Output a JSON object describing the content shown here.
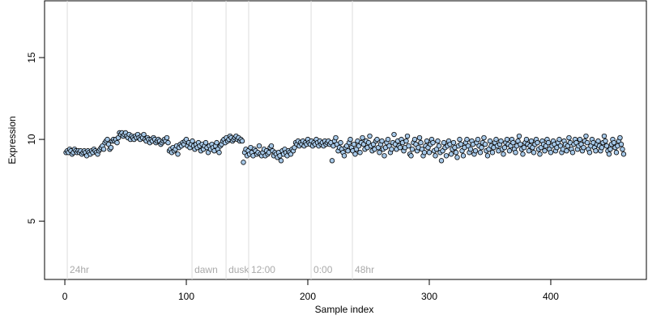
{
  "chart_data": {
    "type": "scatter",
    "xlabel": "Sample index",
    "ylabel": "Expression",
    "xlim": [
      -16.7,
      478.7
    ],
    "ylim": [
      1.44,
      18.47
    ],
    "xticks": [
      0,
      100,
      200,
      300,
      400
    ],
    "yticks": [
      5,
      10,
      15
    ],
    "annotations": [
      {
        "x": 2,
        "text": "24hr"
      },
      {
        "x": 104.7,
        "text": "dawn"
      },
      {
        "x": 132.7,
        "text": "dusk"
      },
      {
        "x": 151.3,
        "text": "12:00"
      },
      {
        "x": 202.7,
        "text": "0:00"
      },
      {
        "x": 236.7,
        "text": "48hr"
      }
    ],
    "series": [
      {
        "color": "#a6c8e8",
        "x": [
          1,
          2,
          3,
          4,
          5,
          6,
          7,
          8,
          9,
          10,
          11,
          12,
          13,
          14,
          15,
          16,
          17,
          18,
          19,
          20,
          21,
          22,
          23,
          24,
          25,
          26,
          27,
          28,
          29,
          30,
          31,
          32,
          33,
          34,
          35,
          36,
          37,
          38,
          39,
          40,
          41,
          42,
          43,
          44,
          45,
          46,
          47,
          48,
          49,
          50,
          51,
          52,
          53,
          54,
          55,
          56,
          57,
          58,
          59,
          60,
          61,
          62,
          63,
          64,
          65,
          66,
          67,
          68,
          69,
          70,
          71,
          72,
          73,
          74,
          75,
          76,
          77,
          78,
          79,
          80,
          81,
          82,
          83,
          84,
          85,
          86,
          87,
          88,
          89,
          90,
          91,
          92,
          93,
          94,
          95,
          96,
          97,
          98,
          99,
          100,
          101,
          102,
          103,
          104,
          105,
          106,
          107,
          108,
          109,
          110,
          111,
          112,
          113,
          114,
          115,
          116,
          117,
          118,
          119,
          120,
          121,
          122,
          123,
          124,
          125,
          126,
          127,
          128,
          129,
          130,
          131,
          132,
          133,
          134,
          135,
          136,
          137,
          138,
          139,
          140,
          141,
          142,
          143,
          144,
          145,
          146,
          147,
          148,
          149,
          150,
          151,
          152,
          153,
          154,
          155,
          156,
          157,
          158,
          159,
          160,
          161,
          162,
          163,
          164,
          165,
          166,
          167,
          168,
          169,
          170,
          171,
          172,
          173,
          174,
          175,
          176,
          177,
          178,
          179,
          180,
          181,
          182,
          183,
          184,
          185,
          186,
          187,
          188,
          189,
          190,
          191,
          192,
          193,
          194,
          195,
          196,
          197,
          198,
          199,
          200,
          201,
          202,
          203,
          204,
          205,
          206,
          207,
          208,
          209,
          210,
          211,
          212,
          213,
          214,
          215,
          216,
          217,
          218,
          219,
          220,
          221,
          222,
          223,
          224,
          225,
          226,
          227,
          228,
          229,
          230,
          231,
          232,
          233,
          234,
          235,
          236,
          237,
          238,
          239,
          240,
          241,
          242,
          243,
          244,
          245,
          246,
          247,
          248,
          249,
          250,
          251,
          252,
          253,
          254,
          255,
          256,
          257,
          258,
          259,
          260,
          261,
          262,
          263,
          264,
          265,
          266,
          267,
          268,
          269,
          270,
          271,
          272,
          273,
          274,
          275,
          276,
          277,
          278,
          279,
          280,
          281,
          282,
          283,
          284,
          285,
          286,
          287,
          288,
          289,
          290,
          291,
          292,
          293,
          294,
          295,
          296,
          297,
          298,
          299,
          300,
          301,
          302,
          303,
          304,
          305,
          306,
          307,
          308,
          309,
          310,
          311,
          312,
          313,
          314,
          315,
          316,
          317,
          318,
          319,
          320,
          321,
          322,
          323,
          324,
          325,
          326,
          327,
          328,
          329,
          330,
          331,
          332,
          333,
          334,
          335,
          336,
          337,
          338,
          339,
          340,
          341,
          342,
          343,
          344,
          345,
          346,
          347,
          348,
          349,
          350,
          351,
          352,
          353,
          354,
          355,
          356,
          357,
          358,
          359,
          360,
          361,
          362,
          363,
          364,
          365,
          366,
          367,
          368,
          369,
          370,
          371,
          372,
          373,
          374,
          375,
          376,
          377,
          378,
          379,
          380,
          381,
          382,
          383,
          384,
          385,
          386,
          387,
          388,
          389,
          390,
          391,
          392,
          393,
          394,
          395,
          396,
          397,
          398,
          399,
          400,
          401,
          402,
          403,
          404,
          405,
          406,
          407,
          408,
          409,
          410,
          411,
          412,
          413,
          414,
          415,
          416,
          417,
          418,
          419,
          420,
          421,
          422,
          423,
          424,
          425,
          426,
          427,
          428,
          429,
          430,
          431,
          432,
          433,
          434,
          435,
          436,
          437,
          438,
          439,
          440,
          441,
          442,
          443,
          444,
          445,
          446,
          447,
          448,
          449,
          450,
          451,
          452,
          453,
          454,
          455,
          456,
          457,
          458,
          459,
          460
        ],
        "values": [
          9.2,
          9.3,
          9.2,
          9.4,
          9.3,
          9.1,
          9.2,
          9.4,
          9.3,
          9.2,
          9.3,
          9.2,
          9.3,
          9.1,
          9.2,
          9.3,
          9.2,
          9.0,
          9.3,
          9.2,
          9.1,
          9.3,
          9.2,
          9.4,
          9.3,
          9.2,
          9.1,
          9.3,
          9.4,
          9.5,
          9.6,
          9.4,
          9.8,
          9.9,
          10.0,
          9.7,
          9.4,
          9.5,
          9.9,
          10.0,
          9.9,
          10.0,
          9.8,
          10.1,
          10.4,
          10.3,
          10.4,
          10.2,
          10.3,
          10.4,
          10.2,
          10.1,
          10.3,
          10.0,
          10.2,
          10.1,
          10.0,
          10.2,
          10.1,
          10.3,
          10.1,
          10.0,
          10.2,
          10.1,
          10.3,
          10.0,
          9.9,
          10.1,
          10.0,
          9.8,
          10.0,
          9.9,
          10.1,
          10.0,
          9.8,
          9.9,
          10.0,
          9.9,
          9.7,
          9.8,
          9.9,
          10.0,
          9.9,
          10.1,
          9.8,
          9.3,
          9.4,
          9.2,
          9.5,
          9.3,
          9.4,
          9.6,
          9.1,
          9.5,
          9.7,
          9.6,
          9.8,
          9.7,
          9.9,
          10.0,
          9.6,
          9.8,
          9.5,
          9.7,
          9.9,
          9.6,
          9.4,
          9.7,
          9.5,
          9.8,
          9.6,
          9.3,
          9.7,
          9.4,
          9.6,
          9.8,
          9.5,
          9.2,
          9.6,
          9.4,
          9.7,
          9.5,
          9.3,
          9.6,
          9.8,
          9.4,
          9.2,
          9.6,
          9.7,
          9.9,
          10.0,
          9.8,
          10.1,
          9.9,
          10.0,
          10.2,
          10.1,
          9.9,
          10.0,
          10.1,
          10.2,
          10.0,
          10.1,
          9.9,
          10.0,
          9.9,
          8.6,
          9.2,
          9.4,
          9.0,
          9.3,
          9.1,
          9.5,
          9.2,
          9.0,
          9.4,
          9.3,
          9.1,
          9.2,
          9.6,
          9.1,
          9.0,
          9.2,
          9.4,
          9.0,
          9.3,
          9.1,
          9.2,
          9.5,
          9.6,
          9.3,
          9.0,
          9.2,
          9.1,
          8.9,
          9.2,
          9.0,
          8.7,
          9.3,
          9.1,
          9.4,
          9.2,
          9.0,
          9.3,
          9.2,
          9.1,
          9.4,
          9.3,
          9.5,
          9.8,
          9.7,
          9.9,
          9.6,
          9.8,
          9.7,
          9.9,
          9.6,
          9.8,
          9.7,
          10.0,
          9.8,
          9.7,
          9.9,
          9.6,
          9.8,
          9.7,
          10.0,
          9.8,
          9.6,
          9.9,
          9.7,
          9.8,
          9.6,
          9.9,
          9.7,
          9.8,
          9.9,
          9.7,
          9.8,
          8.7,
          9.6,
          9.9,
          10.1,
          9.7,
          9.3,
          9.5,
          9.8,
          9.4,
          9.2,
          9.0,
          9.5,
          9.6,
          9.3,
          9.8,
          10.0,
          9.5,
          9.3,
          9.7,
          9.1,
          9.4,
          9.9,
          9.6,
          9.2,
          9.8,
          10.1,
          9.7,
          9.4,
          9.9,
          9.5,
          9.8,
          10.2,
          9.6,
          9.3,
          9.7,
          9.4,
          9.9,
          10.0,
          9.5,
          9.2,
          9.7,
          9.9,
          9.4,
          9.0,
          9.5,
          9.8,
          10.0,
          9.6,
          9.2,
          9.4,
          9.8,
          10.3,
          9.7,
          9.4,
          9.9,
          9.6,
          9.5,
          10.0,
          9.8,
          9.3,
          9.5,
          9.9,
          10.2,
          9.6,
          9.1,
          9.0,
          9.4,
          9.8,
          10.0,
          9.7,
          9.3,
          9.5,
          10.1,
          9.8,
          9.4,
          9.0,
          9.2,
          9.6,
          9.9,
          9.5,
          9.2,
          9.7,
          10.0,
          9.8,
          9.3,
          9.0,
          9.4,
          9.9,
          9.6,
          9.2,
          8.7,
          9.3,
          9.8,
          9.5,
          9.0,
          9.6,
          9.9,
          9.7,
          9.1,
          9.4,
          9.8,
          9.5,
          9.2,
          8.9,
          9.6,
          10.0,
          9.7,
          9.3,
          9.0,
          9.5,
          9.8,
          10.0,
          9.6,
          9.2,
          9.4,
          9.9,
          9.7,
          9.1,
          9.3,
          9.8,
          10.0,
          9.6,
          9.2,
          9.5,
          9.8,
          10.1,
          9.7,
          9.3,
          9.0,
          9.4,
          9.9,
          9.6,
          9.2,
          9.5,
          9.8,
          10.0,
          9.6,
          9.3,
          9.7,
          9.9,
          9.4,
          9.1,
          9.5,
          9.8,
          10.0,
          9.7,
          9.3,
          9.6,
          10.0,
          9.8,
          9.4,
          9.2,
          9.6,
          9.9,
          10.2,
          9.7,
          9.4,
          9.1,
          9.5,
          9.8,
          10.0,
          9.7,
          9.3,
          9.6,
          9.9,
          9.5,
          9.2,
          9.7,
          10.0,
          9.8,
          9.4,
          9.1,
          9.5,
          9.9,
          9.7,
          9.3,
          9.6,
          10.0,
          9.8,
          9.4,
          9.2,
          9.6,
          9.9,
          9.7,
          9.3,
          9.5,
          9.8,
          10.0,
          9.6,
          9.2,
          9.4,
          9.9,
          9.7,
          9.3,
          9.6,
          10.1,
          9.8,
          9.4,
          9.2,
          9.7,
          10.0,
          9.8,
          9.4,
          9.6,
          10.0,
          9.7,
          9.3,
          9.5,
          9.9,
          10.2,
          9.8,
          9.4,
          9.2,
          9.6,
          10.0,
          9.8,
          9.5,
          9.3,
          9.7,
          9.9,
          9.6,
          9.3,
          9.5,
          9.8,
          10.2,
          9.9,
          9.6,
          9.3,
          9.1,
          9.4,
          9.7,
          10.0,
          9.8,
          9.5,
          9.2,
          9.6,
          9.9,
          10.1,
          9.7,
          9.4,
          9.1
        ]
      }
    ]
  }
}
